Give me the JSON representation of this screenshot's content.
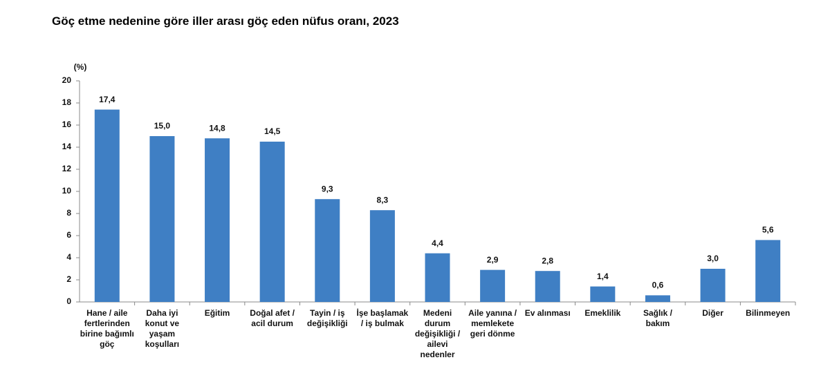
{
  "chart_data": {
    "type": "bar",
    "title": "Göç etme nedenine göre iller arası göç eden nüfus oranı, 2023",
    "y_label": "(%)",
    "categories": [
      "Hane / aile fertlerinden birine bağımlı göç",
      "Daha iyi konut ve yaşam koşulları",
      "Eğitim",
      "Doğal afet / acil durum",
      "Tayin / iş değişikliği",
      "İşe başlamak / iş bulmak",
      "Medeni durum değişikliği / ailevi nedenler",
      "Aile yanına / memlekete geri dönme",
      "Ev alınması",
      "Emeklilik",
      "Sağlık / bakım",
      "Diğer",
      "Bilinmeyen"
    ],
    "values": [
      17.4,
      15.0,
      14.8,
      14.5,
      9.3,
      8.3,
      4.4,
      2.9,
      2.8,
      1.4,
      0.6,
      3.0,
      5.6
    ],
    "value_labels": [
      "17,4",
      "15,0",
      "14,8",
      "14,5",
      "9,3",
      "8,3",
      "4,4",
      "2,9",
      "2,8",
      "1,4",
      "0,6",
      "3,0",
      "5,6"
    ],
    "color": "#3f7fc4",
    "ylim": [
      0,
      20
    ],
    "yticks": [
      0,
      2,
      4,
      6,
      8,
      10,
      12,
      14,
      16,
      18,
      20
    ],
    "grid": false
  }
}
